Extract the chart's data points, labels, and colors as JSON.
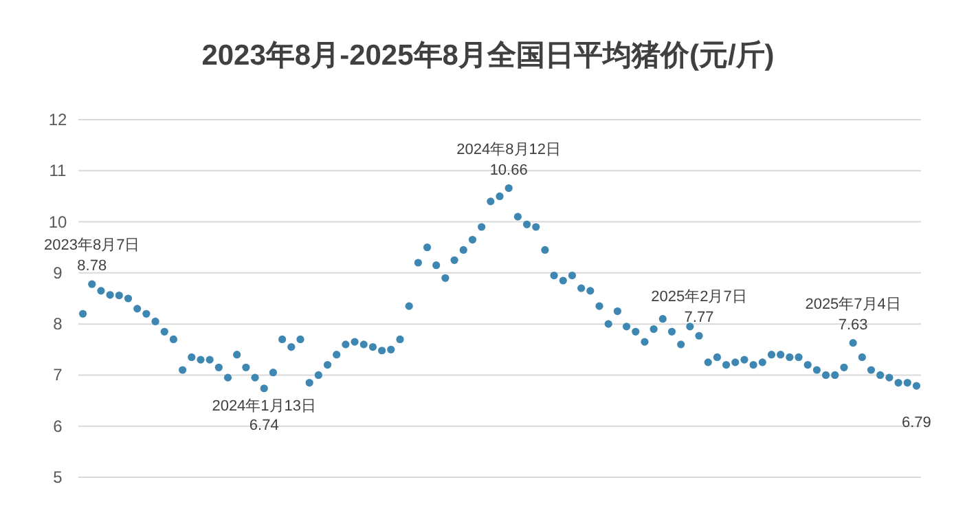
{
  "chart_data": {
    "type": "scatter",
    "title": "2023年8月-2025年8月全国日平均猪价(元/斤)",
    "categories": [
      null,
      null,
      null,
      null,
      null,
      null,
      null,
      null,
      null,
      null,
      null,
      null,
      null,
      null,
      null,
      null,
      null,
      null,
      null,
      null,
      null,
      null,
      null,
      null,
      null,
      null,
      null,
      null,
      null,
      null,
      null,
      null,
      null,
      null,
      null,
      null,
      null,
      null,
      null,
      null,
      null,
      null,
      null,
      null,
      null,
      null,
      null,
      null,
      null,
      null,
      null,
      null,
      null,
      null,
      null,
      null,
      null,
      null,
      null,
      null,
      null,
      null,
      null,
      null,
      null,
      null,
      null,
      null,
      null,
      null,
      null,
      null,
      null,
      null,
      null,
      null,
      null,
      null,
      null,
      null,
      null,
      null,
      null,
      null,
      null,
      null,
      null,
      null,
      null,
      null,
      null,
      null,
      null
    ],
    "values": [
      8.2,
      8.78,
      8.65,
      8.57,
      8.56,
      8.5,
      8.3,
      8.2,
      8.05,
      7.85,
      7.7,
      7.1,
      7.35,
      7.3,
      7.3,
      7.15,
      6.95,
      7.4,
      7.15,
      6.95,
      6.74,
      7.05,
      7.7,
      7.55,
      7.7,
      6.85,
      7.0,
      7.2,
      7.4,
      7.6,
      7.65,
      7.6,
      7.55,
      7.48,
      7.5,
      7.7,
      8.35,
      9.2,
      9.5,
      9.15,
      8.9,
      9.25,
      9.45,
      9.65,
      9.9,
      10.4,
      10.5,
      10.66,
      10.1,
      9.95,
      9.9,
      9.45,
      8.95,
      8.85,
      8.95,
      8.7,
      8.65,
      8.35,
      8.0,
      8.25,
      7.95,
      7.85,
      7.65,
      7.9,
      8.1,
      7.85,
      7.6,
      7.95,
      7.77,
      7.25,
      7.35,
      7.2,
      7.25,
      7.3,
      7.2,
      7.25,
      7.4,
      7.4,
      7.35,
      7.35,
      7.2,
      7.1,
      7.0,
      7.0,
      7.15,
      7.63,
      7.35,
      7.1,
      7.0,
      6.95,
      6.85,
      6.85,
      6.79
    ],
    "value_labels": [
      null,
      "8.78",
      null,
      null,
      null,
      null,
      null,
      null,
      null,
      null,
      null,
      null,
      null,
      null,
      null,
      null,
      null,
      null,
      null,
      null,
      "6.74",
      null,
      null,
      null,
      null,
      null,
      null,
      null,
      null,
      null,
      null,
      null,
      null,
      null,
      null,
      null,
      null,
      null,
      null,
      null,
      null,
      null,
      null,
      null,
      null,
      null,
      null,
      "10.66",
      null,
      null,
      null,
      null,
      null,
      null,
      null,
      null,
      null,
      null,
      null,
      null,
      null,
      null,
      null,
      null,
      null,
      null,
      null,
      null,
      "7.77",
      null,
      null,
      null,
      null,
      null,
      null,
      null,
      null,
      null,
      null,
      null,
      null,
      null,
      null,
      null,
      null,
      "7.63",
      null,
      null,
      null,
      null,
      null,
      null,
      "6.79"
    ],
    "color": "#3d87b2",
    "marker": "circle",
    "grid": "y",
    "ylim": [
      5,
      12
    ],
    "yticks": [
      5,
      6,
      7,
      8,
      9,
      10,
      11,
      12
    ],
    "annotations": [
      "2023年8月7日",
      "2024年1月13日",
      "2024年8月12日",
      "2025年2月7日",
      "2025年7月4日"
    ]
  }
}
